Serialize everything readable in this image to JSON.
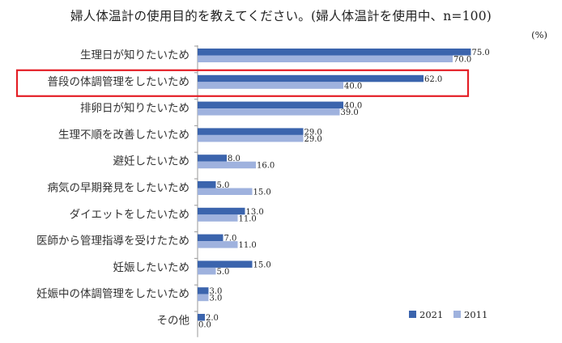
{
  "chart_data": {
    "type": "bar",
    "orientation": "horizontal",
    "title": "婦人体温計の使用目的を教えてください。(婦人体温計を使用中、n=100)",
    "unit": "(%)",
    "categories": [
      "生理日が知りたいため",
      "普段の体調管理をしたいため",
      "排卵日が知りたいため",
      "生理不順を改善したいため",
      "避妊したいため",
      "病気の早期発見をしたいため",
      "ダイエットをしたいため",
      "医師から管理指導を受けたため",
      "妊娠したいため",
      "妊娠中の体調管理をしたいため",
      "その他"
    ],
    "series": [
      {
        "name": "2021",
        "values": [
          75.0,
          62.0,
          40.0,
          29.0,
          8.0,
          5.0,
          13.0,
          7.0,
          15.0,
          3.0,
          2.0
        ]
      },
      {
        "name": "2011",
        "values": [
          70.0,
          40.0,
          39.0,
          29.0,
          16.0,
          15.0,
          11.0,
          11.0,
          5.0,
          3.0,
          0.0
        ]
      }
    ],
    "xlim": [
      0,
      100
    ],
    "grid": false,
    "legend_position": "bottom-right",
    "highlighted_category": "普段の体調管理をしたいため",
    "colors": {
      "2021": "#3b64ad",
      "2011": "#9fb2de",
      "highlight_box": "#e41f26"
    }
  }
}
